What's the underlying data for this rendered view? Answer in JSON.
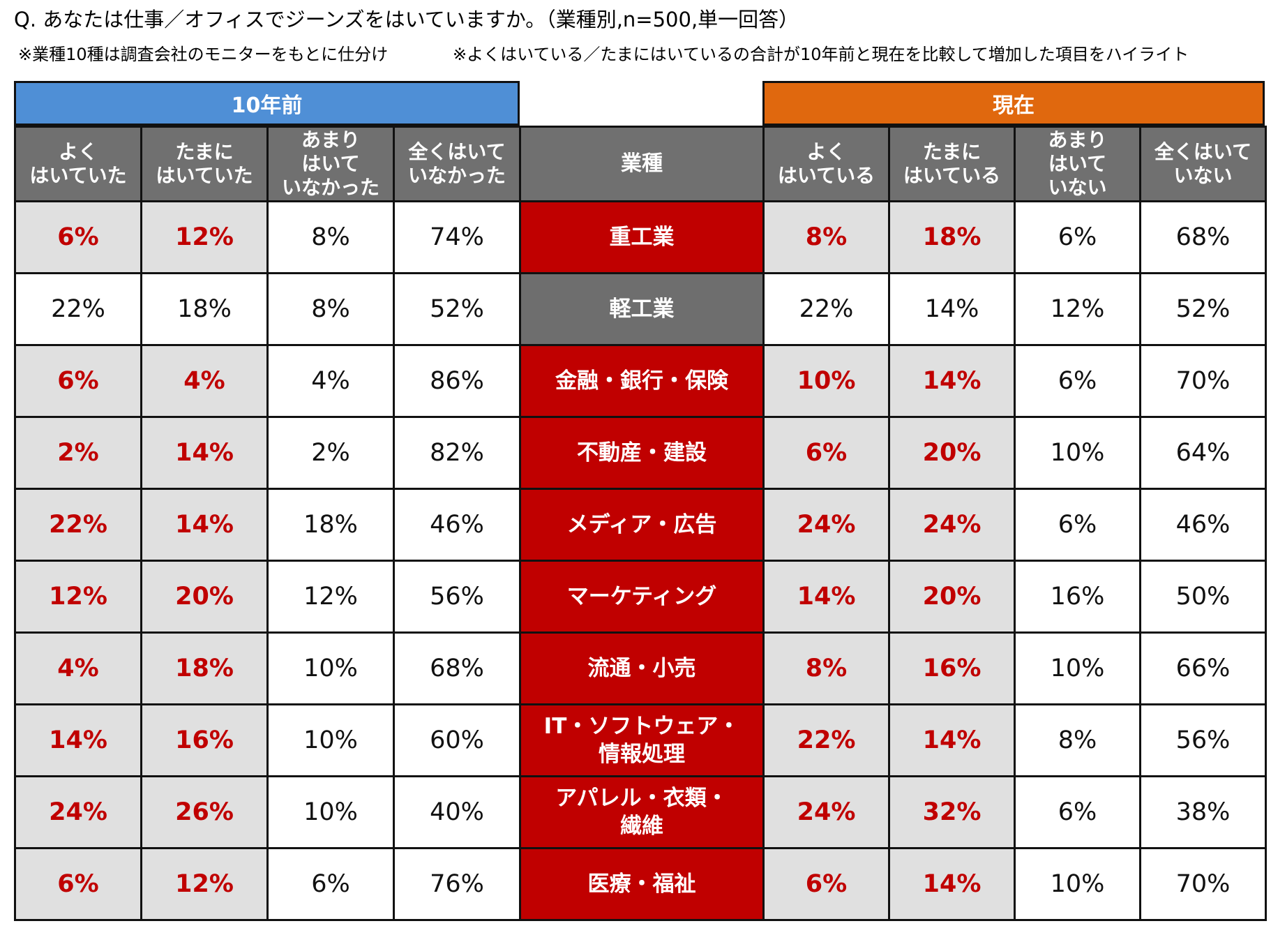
{
  "title": "Q. あなたは仕事／オフィスでジーンズをはいていますか。（業種別,n=500,単一回答）",
  "note_left": "※業種10種は調査会社のモニターをもとに仕分け",
  "note_right": "※よくはいている／たまにはいているの合計が10年前と現在を比較して増加した項目をハイライト",
  "groups": {
    "past": "10年前",
    "now": "現在"
  },
  "colors": {
    "past": "#4f8fd6",
    "now": "#e0680e",
    "highlight": "#c00000",
    "header": "#707070"
  },
  "chart_data": {
    "type": "table",
    "past_columns": [
      "よく\nはいていた",
      "たまに\nはいていた",
      "あまり\nはいて\nいなかった",
      "全くはいて\nいなかった"
    ],
    "industry_column": "業種",
    "now_columns": [
      "よく\nはいている",
      "たまに\nはいている",
      "あまり\nはいて\nいない",
      "全くはいて\nいない"
    ],
    "rows": [
      {
        "industry": "重工業",
        "highlighted": true,
        "past": [
          "6%",
          "12%",
          "8%",
          "74%"
        ],
        "now": [
          "8%",
          "18%",
          "6%",
          "68%"
        ]
      },
      {
        "industry": "軽工業",
        "highlighted": false,
        "past": [
          "22%",
          "18%",
          "8%",
          "52%"
        ],
        "now": [
          "22%",
          "14%",
          "12%",
          "52%"
        ]
      },
      {
        "industry": "金融・銀行・保険",
        "highlighted": true,
        "past": [
          "6%",
          "4%",
          "4%",
          "86%"
        ],
        "now": [
          "10%",
          "14%",
          "6%",
          "70%"
        ]
      },
      {
        "industry": "不動産・建設",
        "highlighted": true,
        "past": [
          "2%",
          "14%",
          "2%",
          "82%"
        ],
        "now": [
          "6%",
          "20%",
          "10%",
          "64%"
        ]
      },
      {
        "industry": "メディア・広告",
        "highlighted": true,
        "past": [
          "22%",
          "14%",
          "18%",
          "46%"
        ],
        "now": [
          "24%",
          "24%",
          "6%",
          "46%"
        ]
      },
      {
        "industry": "マーケティング",
        "highlighted": true,
        "past": [
          "12%",
          "20%",
          "12%",
          "56%"
        ],
        "now": [
          "14%",
          "20%",
          "16%",
          "50%"
        ]
      },
      {
        "industry": "流通・小売",
        "highlighted": true,
        "past": [
          "4%",
          "18%",
          "10%",
          "68%"
        ],
        "now": [
          "8%",
          "16%",
          "10%",
          "66%"
        ]
      },
      {
        "industry": "IT・ソフトウェア・\n情報処理",
        "highlighted": true,
        "past": [
          "14%",
          "16%",
          "10%",
          "60%"
        ],
        "now": [
          "22%",
          "14%",
          "8%",
          "56%"
        ]
      },
      {
        "industry": "アパレル・衣類・\n繊維",
        "highlighted": true,
        "past": [
          "24%",
          "26%",
          "10%",
          "40%"
        ],
        "now": [
          "24%",
          "32%",
          "6%",
          "38%"
        ]
      },
      {
        "industry": "医療・福祉",
        "highlighted": true,
        "past": [
          "6%",
          "12%",
          "6%",
          "76%"
        ],
        "now": [
          "6%",
          "14%",
          "10%",
          "70%"
        ]
      }
    ]
  }
}
